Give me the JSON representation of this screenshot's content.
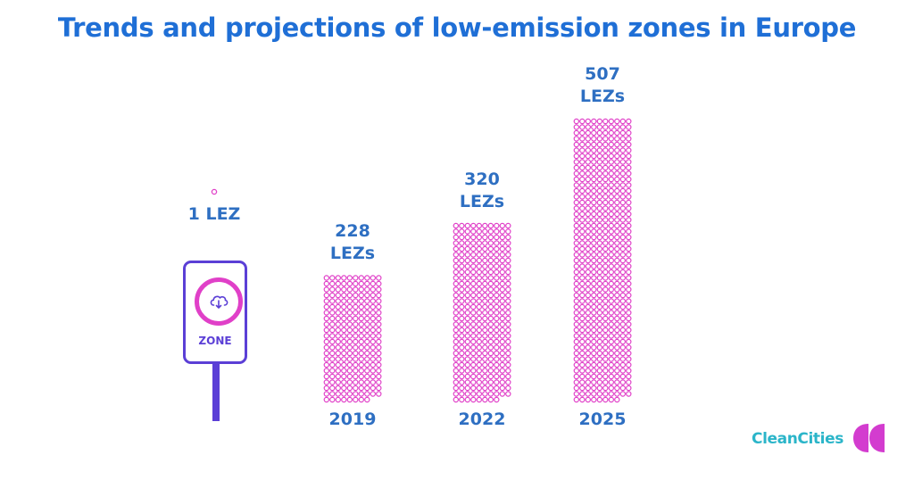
{
  "title": "Trends and projections of low-emission zones in Europe",
  "colors": {
    "title": "#1f6fd6",
    "labels": "#2e6fc2",
    "dots": "#e040c8",
    "sign_frame": "#5b3fd6",
    "brand_text": "#2bb5c9",
    "brand_mark": "#d33ccf"
  },
  "sign": {
    "icon": "cloud-download-icon",
    "label": "ZONE"
  },
  "brand": {
    "text": "CleanCities",
    "icon": "clean-cities-logo"
  },
  "chart_data": {
    "type": "bar",
    "style": "dot-pictogram",
    "title": "Trends and projections of low-emission zones in Europe",
    "categories": [
      "",
      "2019",
      "2022",
      "2025"
    ],
    "values": [
      1,
      228,
      320,
      507
    ],
    "data_labels": [
      "1 LEZ",
      "228 LEZs",
      "320 LEZs",
      "507 LEZs"
    ],
    "xlabel": "",
    "ylabel": "",
    "grid": false,
    "legend": "none"
  }
}
